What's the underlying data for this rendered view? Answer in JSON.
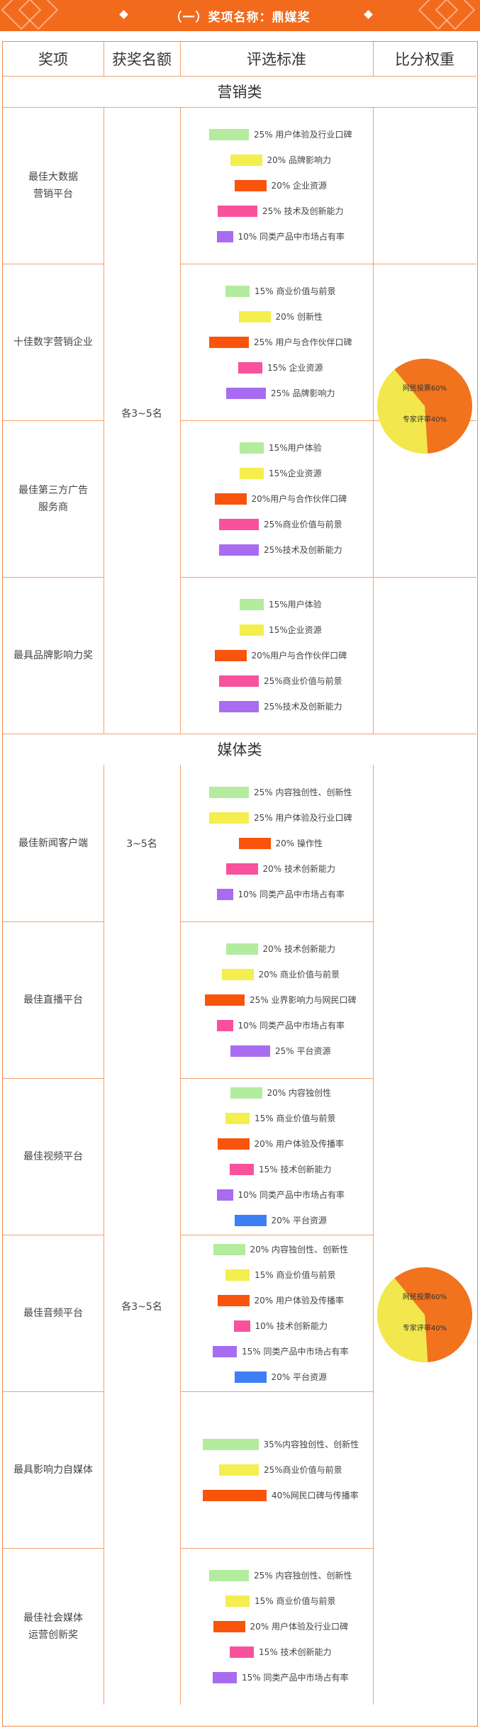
{
  "banner": {
    "title": "（一）奖项名称：鼎媒奖"
  },
  "headers": [
    "奖项",
    "获奖名额",
    "评选标准",
    "比分权重"
  ],
  "colors": {
    "green": "#b3ec9e",
    "yellow": "#f4ee4e",
    "orange": "#f8540c",
    "pink": "#f7529b",
    "purple": "#a86cf0",
    "blue": "#3d7ef5",
    "pie_orange": "#f1731d",
    "pie_yellow": "#f2e74d"
  },
  "sections": [
    {
      "title": "营销类",
      "quota": "各3~5名",
      "pie": {
        "slices": [
          {
            "label": "网民投票60%",
            "value": 60
          },
          {
            "label": "专家评审40%",
            "value": 40
          }
        ]
      },
      "awards": [
        {
          "name": "最佳大数据\n营销平台",
          "criteria": [
            {
              "text": "25% 用户体验及行业口碑",
              "pct": 25,
              "color": "green"
            },
            {
              "text": "20% 品牌影响力",
              "pct": 20,
              "color": "yellow"
            },
            {
              "text": "20% 企业资源",
              "pct": 20,
              "color": "orange"
            },
            {
              "text": "25% 技术及创新能力",
              "pct": 25,
              "color": "pink"
            },
            {
              "text": "10% 同类产品中市场占有率",
              "pct": 10,
              "color": "purple"
            }
          ]
        },
        {
          "name": "十佳数字营销企业",
          "criteria": [
            {
              "text": "15% 商业价值与前景",
              "pct": 15,
              "color": "green"
            },
            {
              "text": "20% 创新性",
              "pct": 20,
              "color": "yellow"
            },
            {
              "text": "25% 用户与合作伙伴口碑",
              "pct": 25,
              "color": "orange"
            },
            {
              "text": "15% 企业资源",
              "pct": 15,
              "color": "pink"
            },
            {
              "text": "25% 品牌影响力",
              "pct": 25,
              "color": "purple"
            }
          ]
        },
        {
          "name": "最佳第三方广告\n服务商",
          "criteria": [
            {
              "text": "15%用户体验",
              "pct": 15,
              "color": "green"
            },
            {
              "text": "15%企业资源",
              "pct": 15,
              "color": "yellow"
            },
            {
              "text": "20%用户与合作伙伴口碑",
              "pct": 20,
              "color": "orange"
            },
            {
              "text": "25%商业价值与前景",
              "pct": 25,
              "color": "pink"
            },
            {
              "text": "25%技术及创新能力",
              "pct": 25,
              "color": "purple"
            }
          ]
        },
        {
          "name": "最具品牌影响力奖",
          "criteria": [
            {
              "text": "15%用户体验",
              "pct": 15,
              "color": "green"
            },
            {
              "text": "15%企业资源",
              "pct": 15,
              "color": "yellow"
            },
            {
              "text": "20%用户与合作伙伴口碑",
              "pct": 20,
              "color": "orange"
            },
            {
              "text": "25%商业价值与前景",
              "pct": 25,
              "color": "pink"
            },
            {
              "text": "25%技术及创新能力",
              "pct": 25,
              "color": "purple"
            }
          ]
        }
      ]
    },
    {
      "title": "媒体类",
      "quota": "各3~5名",
      "pie": {
        "slices": [
          {
            "label": "网民投票60%",
            "value": 60
          },
          {
            "label": "专家评审40%",
            "value": 40
          }
        ]
      },
      "awards": [
        {
          "name": "最佳新闻客户端",
          "quota": "3~5名",
          "criteria": [
            {
              "text": "25% 内容独创性、创新性",
              "pct": 25,
              "color": "green"
            },
            {
              "text": "25% 用户体验及行业口碑",
              "pct": 25,
              "color": "yellow"
            },
            {
              "text": "20% 操作性",
              "pct": 20,
              "color": "orange"
            },
            {
              "text": "20% 技术创新能力",
              "pct": 20,
              "color": "pink"
            },
            {
              "text": "10% 同类产品中市场占有率",
              "pct": 10,
              "color": "purple"
            }
          ]
        },
        {
          "name": "最佳直播平台",
          "criteria": [
            {
              "text": "20% 技术创新能力",
              "pct": 20,
              "color": "green"
            },
            {
              "text": "20% 商业价值与前景",
              "pct": 20,
              "color": "yellow"
            },
            {
              "text": "25% 业界影响力与网民口碑",
              "pct": 25,
              "color": "orange"
            },
            {
              "text": "10% 同类产品中市场占有率",
              "pct": 10,
              "color": "pink"
            },
            {
              "text": "25% 平台资源",
              "pct": 25,
              "color": "purple"
            }
          ]
        },
        {
          "name": "最佳视频平台",
          "criteria": [
            {
              "text": "20% 内容独创性",
              "pct": 20,
              "color": "green"
            },
            {
              "text": "15% 商业价值与前景",
              "pct": 15,
              "color": "yellow"
            },
            {
              "text": "20% 用户体验及传播率",
              "pct": 20,
              "color": "orange"
            },
            {
              "text": "15% 技术创新能力",
              "pct": 15,
              "color": "pink"
            },
            {
              "text": "10% 同类产品中市场占有率",
              "pct": 10,
              "color": "purple"
            },
            {
              "text": "20% 平台资源",
              "pct": 20,
              "color": "blue"
            }
          ]
        },
        {
          "name": "最佳音频平台",
          "criteria": [
            {
              "text": "20% 内容独创性、创新性",
              "pct": 20,
              "color": "green"
            },
            {
              "text": "15% 商业价值与前景",
              "pct": 15,
              "color": "yellow"
            },
            {
              "text": "20% 用户体验及传播率",
              "pct": 20,
              "color": "orange"
            },
            {
              "text": "10% 技术创新能力",
              "pct": 10,
              "color": "pink"
            },
            {
              "text": "15% 同类产品中市场占有率",
              "pct": 15,
              "color": "purple"
            },
            {
              "text": "20% 平台资源",
              "pct": 20,
              "color": "blue"
            }
          ]
        },
        {
          "name": "最具影响力自媒体",
          "criteria": [
            {
              "text": "35%内容独创性、创新性",
              "pct": 35,
              "color": "green"
            },
            {
              "text": "25%商业价值与前景",
              "pct": 25,
              "color": "yellow"
            },
            {
              "text": "40%网民口碑与传播率",
              "pct": 40,
              "color": "orange"
            }
          ]
        },
        {
          "name": "最佳社会媒体\n运营创新奖",
          "criteria": [
            {
              "text": "25% 内容独创性、创新性",
              "pct": 25,
              "color": "green"
            },
            {
              "text": "15% 商业价值与前景",
              "pct": 15,
              "color": "yellow"
            },
            {
              "text": "20% 用户体验及行业口碑",
              "pct": 20,
              "color": "orange"
            },
            {
              "text": "15% 技术创新能力",
              "pct": 15,
              "color": "pink"
            },
            {
              "text": "15% 同类产品中市场占有率",
              "pct": 15,
              "color": "purple"
            }
          ]
        }
      ]
    }
  ]
}
